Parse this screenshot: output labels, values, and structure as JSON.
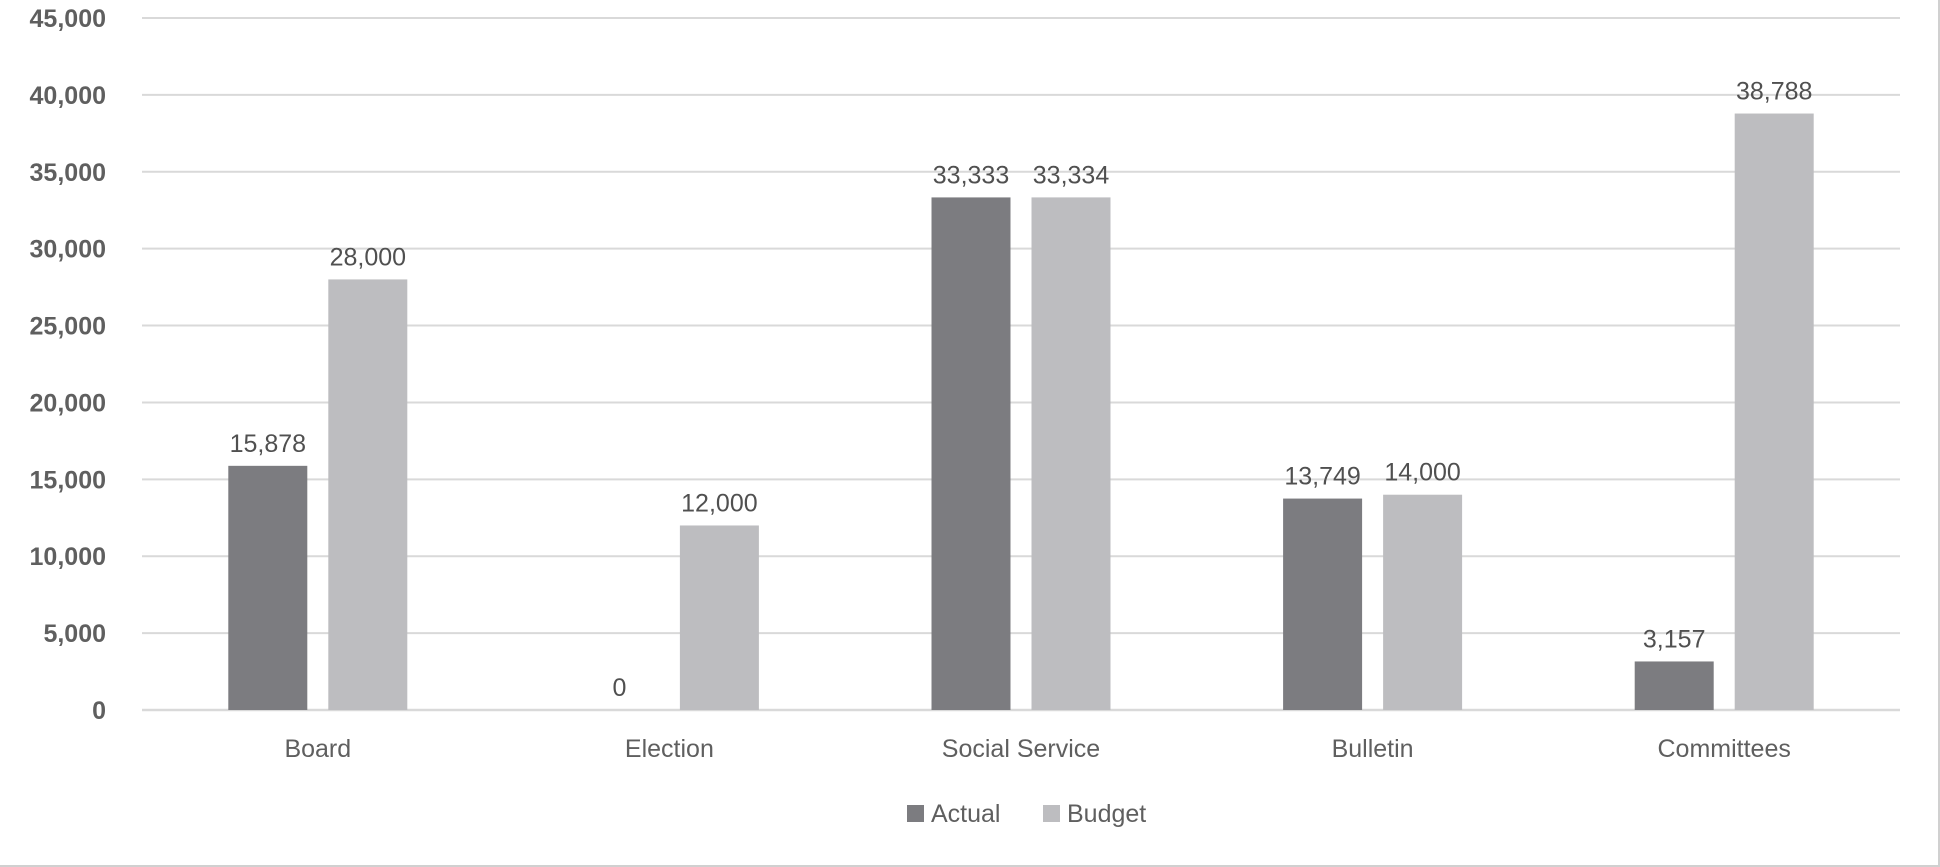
{
  "chart_data": {
    "type": "bar",
    "title": "",
    "xlabel": "",
    "ylabel": "",
    "ylim": [
      0,
      45000
    ],
    "yticks": [
      0,
      5000,
      10000,
      15000,
      20000,
      25000,
      30000,
      35000,
      40000,
      45000
    ],
    "ytick_labels": [
      "0",
      "5,000",
      "10,000",
      "15,000",
      "20,000",
      "25,000",
      "30,000",
      "35,000",
      "40,000",
      "45,000"
    ],
    "grid": true,
    "legend": "bottom-center",
    "categories": [
      "Board",
      "Election",
      "Social Service",
      "Bulletin",
      "Committees"
    ],
    "series": [
      {
        "name": "Actual",
        "color": "#7c7c80",
        "values": [
          15878,
          0,
          33333,
          13749,
          3157
        ],
        "labels": [
          "15,878",
          "0",
          "33,333",
          "13,749",
          "3,157"
        ]
      },
      {
        "name": "Budget",
        "color": "#bdbdc0",
        "values": [
          28000,
          12000,
          33334,
          14000,
          38788
        ],
        "labels": [
          "28,000",
          "12,000",
          "33,334",
          "14,000",
          "38,788"
        ]
      }
    ],
    "colors": {
      "gridline": "#d9d9d9",
      "axis_text": "#5f5f5f",
      "label_text": "#505050"
    }
  }
}
